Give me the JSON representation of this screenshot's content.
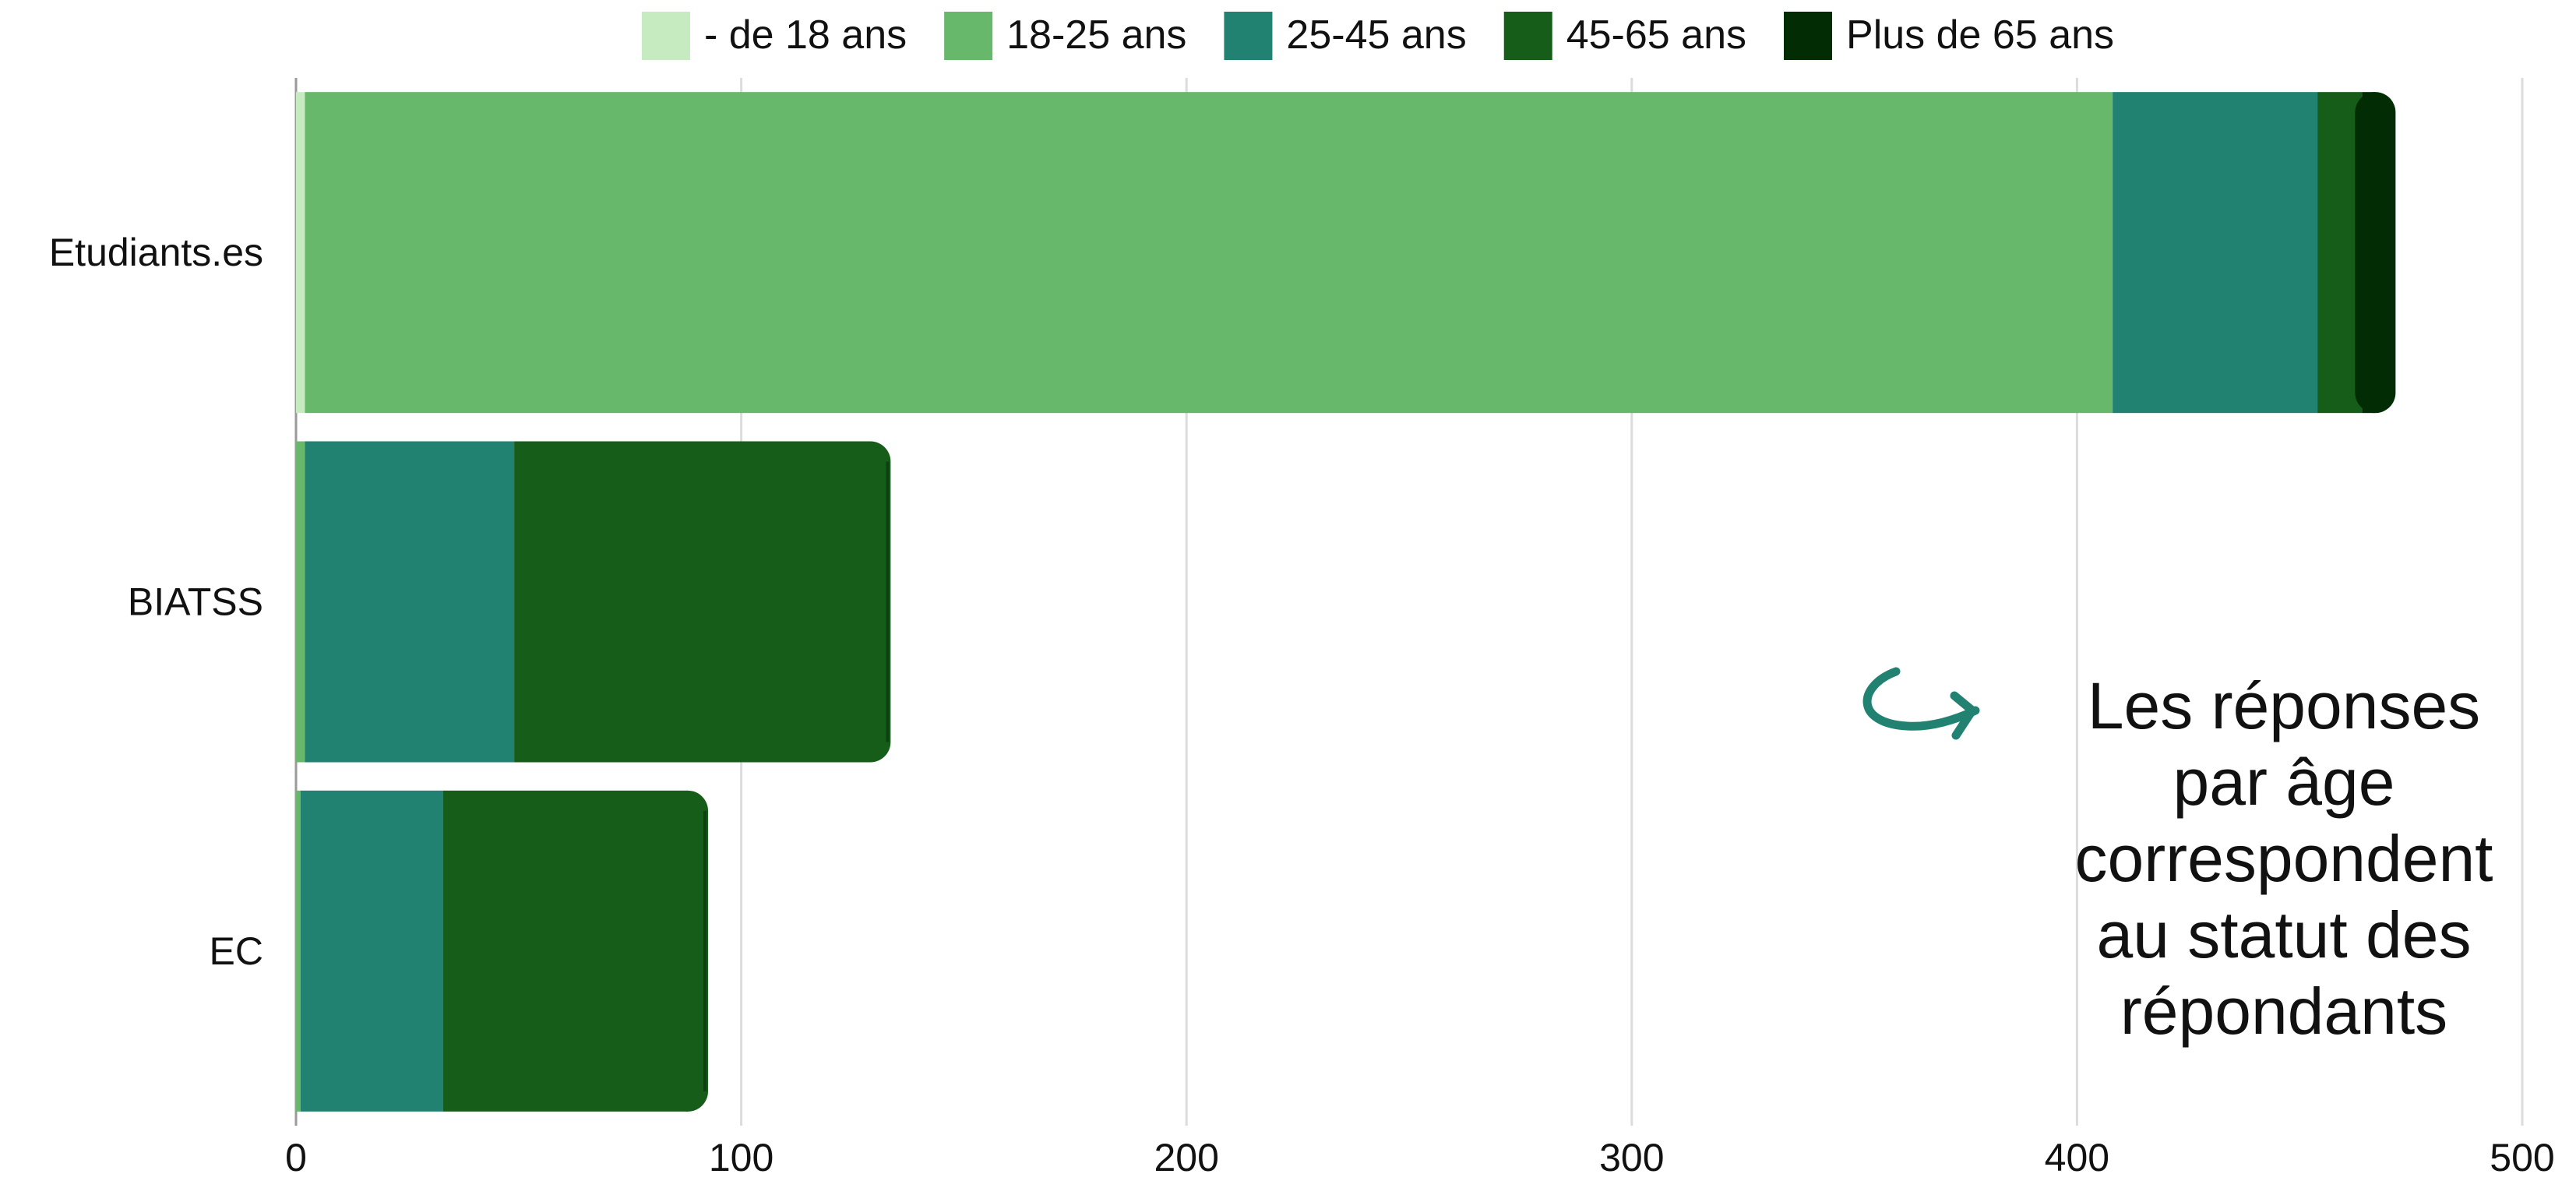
{
  "chart_data": {
    "type": "bar",
    "orientation": "horizontal",
    "stacked": true,
    "categories": [
      "Etudiants.es",
      "BIATSS",
      "EC"
    ],
    "series": [
      {
        "name": "- de 18 ans",
        "color": "#c7ebc1",
        "values": [
          2,
          0,
          0
        ]
      },
      {
        "name": "18-25 ans",
        "color": "#68b86c",
        "values": [
          406,
          2,
          1
        ]
      },
      {
        "name": "25-45 ans",
        "color": "#228272",
        "values": [
          46,
          47,
          32
        ]
      },
      {
        "name": "45-65 ans",
        "color": "#165d1a",
        "values": [
          10,
          80,
          55
        ]
      },
      {
        "name": "Plus de 65 ans",
        "color": "#022d04",
        "values": [
          3,
          0,
          0
        ]
      }
    ],
    "xlim": [
      0,
      500
    ],
    "xticks": [
      0,
      100,
      200,
      300,
      400,
      500
    ],
    "tick_labels": [
      "0",
      "100",
      "200",
      "300",
      "400",
      "500"
    ],
    "grid": true,
    "legend_position": "top",
    "xlabel": "",
    "ylabel": "",
    "title": ""
  },
  "annotation": {
    "lines": [
      "Les réponses",
      "par âge",
      "correspondent",
      "au statut des",
      "répondants"
    ],
    "arrow_color": "#228272",
    "arrow_icon": "curved-arrow-icon"
  }
}
